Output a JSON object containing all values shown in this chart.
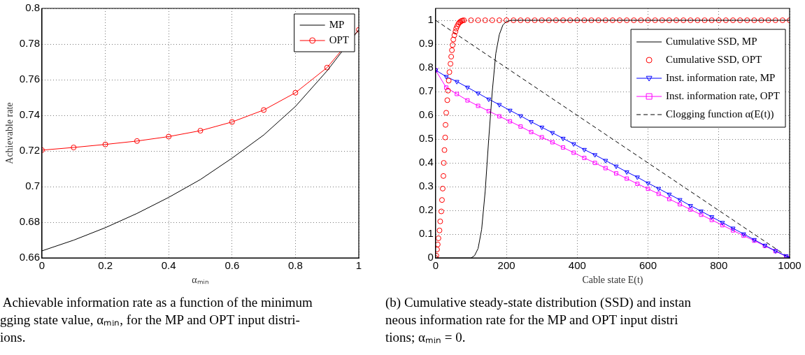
{
  "chart_data": [
    {
      "type": "line",
      "xlabel": "αₘᵢₙ",
      "ylabel": "Achievable rate",
      "xlim": [
        0,
        1
      ],
      "xticks": [
        0,
        0.2,
        0.4,
        0.6,
        0.8,
        1
      ],
      "ylim": [
        0.66,
        0.8
      ],
      "yticks": [
        0.66,
        0.68,
        0.7,
        0.72,
        0.74,
        0.76,
        0.78,
        0.8
      ],
      "grid": true,
      "legend": "top right",
      "series": [
        {
          "name": "MP",
          "color": "#000000",
          "marker": "none",
          "line_style": "solid",
          "x": [
            0,
            0.1,
            0.2,
            0.3,
            0.4,
            0.5,
            0.6,
            0.7,
            0.8,
            0.9,
            1
          ],
          "values": [
            0.664,
            0.67,
            0.677,
            0.685,
            0.694,
            0.704,
            0.716,
            0.729,
            0.745,
            0.765,
            0.788
          ]
        },
        {
          "name": "OPT",
          "color": "#ff0000",
          "marker": "circle",
          "line_style": "solid",
          "x": [
            0,
            0.1,
            0.2,
            0.3,
            0.4,
            0.5,
            0.6,
            0.7,
            0.8,
            0.9,
            1
          ],
          "values": [
            0.7205,
            0.722,
            0.7237,
            0.7256,
            0.7281,
            0.7314,
            0.7363,
            0.743,
            0.7527,
            0.7668,
            0.788
          ]
        }
      ],
      "annotations": [
        " Achievable information rate as a function of the minimum\ngging state value, αₘᵢₙ, for the MP and OPT input distri-\nions."
      ]
    },
    {
      "type": "line",
      "xlabel": "Cable state E(t)",
      "xlim": [
        0,
        1000
      ],
      "xticks": [
        0,
        200,
        400,
        600,
        800,
        1000
      ],
      "ylim": [
        0,
        1.05
      ],
      "yticks": [
        0,
        0.1,
        0.2,
        0.3,
        0.4,
        0.5,
        0.6,
        0.7,
        0.8,
        0.9,
        1
      ],
      "grid": true,
      "legend": "top right",
      "series": [
        {
          "name": "Cumulative SSD, MP",
          "color": "#000000",
          "marker": "none",
          "line_style": "solid",
          "x": [
            0,
            100,
            110,
            120,
            130,
            140,
            150,
            160,
            170,
            180,
            190,
            200,
            215,
            1000
          ],
          "values": [
            0,
            0,
            0.01,
            0.04,
            0.12,
            0.28,
            0.5,
            0.7,
            0.86,
            0.94,
            0.98,
            0.995,
            1,
            1
          ]
        },
        {
          "name": "Cumulative SSD, OPT",
          "type": "scatter",
          "color": "#ff0000",
          "marker": "circle",
          "x": [
            0,
            2,
            4,
            6,
            8,
            11,
            13,
            16,
            18,
            20,
            22,
            23,
            25,
            27,
            28,
            30,
            33,
            35,
            37,
            39,
            42,
            44,
            46,
            48,
            50,
            53,
            56,
            58,
            61,
            64,
            67,
            70,
            73,
            76,
            80,
            100,
            120,
            140,
            160,
            180,
            200,
            220,
            240,
            260,
            280,
            300,
            320,
            340,
            360,
            380,
            400,
            420,
            440,
            460,
            480,
            500,
            520,
            540,
            560,
            580,
            600,
            620,
            640,
            660,
            680,
            700,
            720,
            740,
            760,
            780,
            800,
            820,
            840,
            860,
            880,
            900,
            920,
            940,
            960,
            980,
            1000
          ],
          "values": [
            0,
            0.01,
            0.036,
            0.057,
            0.083,
            0.116,
            0.154,
            0.196,
            0.244,
            0.292,
            0.345,
            0.4,
            0.454,
            0.507,
            0.56,
            0.611,
            0.664,
            0.704,
            0.746,
            0.782,
            0.817,
            0.847,
            0.874,
            0.896,
            0.919,
            0.937,
            0.952,
            0.965,
            0.975,
            0.984,
            0.99,
            0.994,
            0.997,
            0.999,
            1,
            1,
            1,
            1,
            1,
            1,
            1,
            1,
            1,
            1,
            1,
            1,
            1,
            1,
            1,
            1,
            1,
            1,
            1,
            1,
            1,
            1,
            1,
            1,
            1,
            1,
            1,
            1,
            1,
            1,
            1,
            1,
            1,
            1,
            1,
            1,
            1,
            1,
            1,
            1,
            1,
            1,
            1,
            1,
            1,
            1,
            1
          ]
        },
        {
          "name": "Inst. information rate, MP",
          "color": "#0000ff",
          "marker": "triangle",
          "line_style": "solid",
          "x": [
            0,
            30,
            60,
            90,
            120,
            150,
            180,
            210,
            240,
            270,
            300,
            330,
            360,
            390,
            420,
            450,
            480,
            510,
            540,
            570,
            600,
            630,
            660,
            690,
            720,
            750,
            780,
            810,
            840,
            870,
            900,
            930,
            960,
            990,
            1000
          ],
          "values": [
            0.79,
            0.763,
            0.742,
            0.718,
            0.693,
            0.668,
            0.645,
            0.621,
            0.598,
            0.573,
            0.55,
            0.527,
            0.503,
            0.48,
            0.456,
            0.434,
            0.41,
            0.386,
            0.362,
            0.34,
            0.315,
            0.292,
            0.268,
            0.245,
            0.22,
            0.197,
            0.173,
            0.149,
            0.125,
            0.101,
            0.077,
            0.053,
            0.03,
            0.008,
            0
          ]
        },
        {
          "name": "Inst. information rate, OPT",
          "color": "#ff00ff",
          "marker": "square",
          "line_style": "solid",
          "x": [
            0,
            30,
            60,
            90,
            120,
            150,
            180,
            210,
            240,
            270,
            300,
            330,
            360,
            390,
            420,
            450,
            480,
            510,
            540,
            570,
            600,
            630,
            660,
            690,
            720,
            750,
            780,
            810,
            840,
            870,
            900,
            930,
            960,
            990,
            1000
          ],
          "values": [
            0.79,
            0.717,
            0.69,
            0.663,
            0.64,
            0.618,
            0.596,
            0.575,
            0.553,
            0.53,
            0.508,
            0.487,
            0.465,
            0.443,
            0.421,
            0.4,
            0.378,
            0.356,
            0.334,
            0.312,
            0.291,
            0.27,
            0.248,
            0.226,
            0.204,
            0.182,
            0.16,
            0.138,
            0.116,
            0.094,
            0.073,
            0.051,
            0.029,
            0.007,
            0
          ]
        },
        {
          "name": "Clogging function α(E(t))",
          "color": "#000000",
          "marker": "none",
          "line_style": "dashed",
          "x": [
            0,
            1000
          ],
          "values": [
            1,
            0
          ]
        }
      ],
      "annotations": [
        "(b) Cumulative steady-state distribution (SSD) and instan\nneous information rate for the MP and OPT input distri\ntions; αₘᵢₙ = 0."
      ]
    }
  ]
}
